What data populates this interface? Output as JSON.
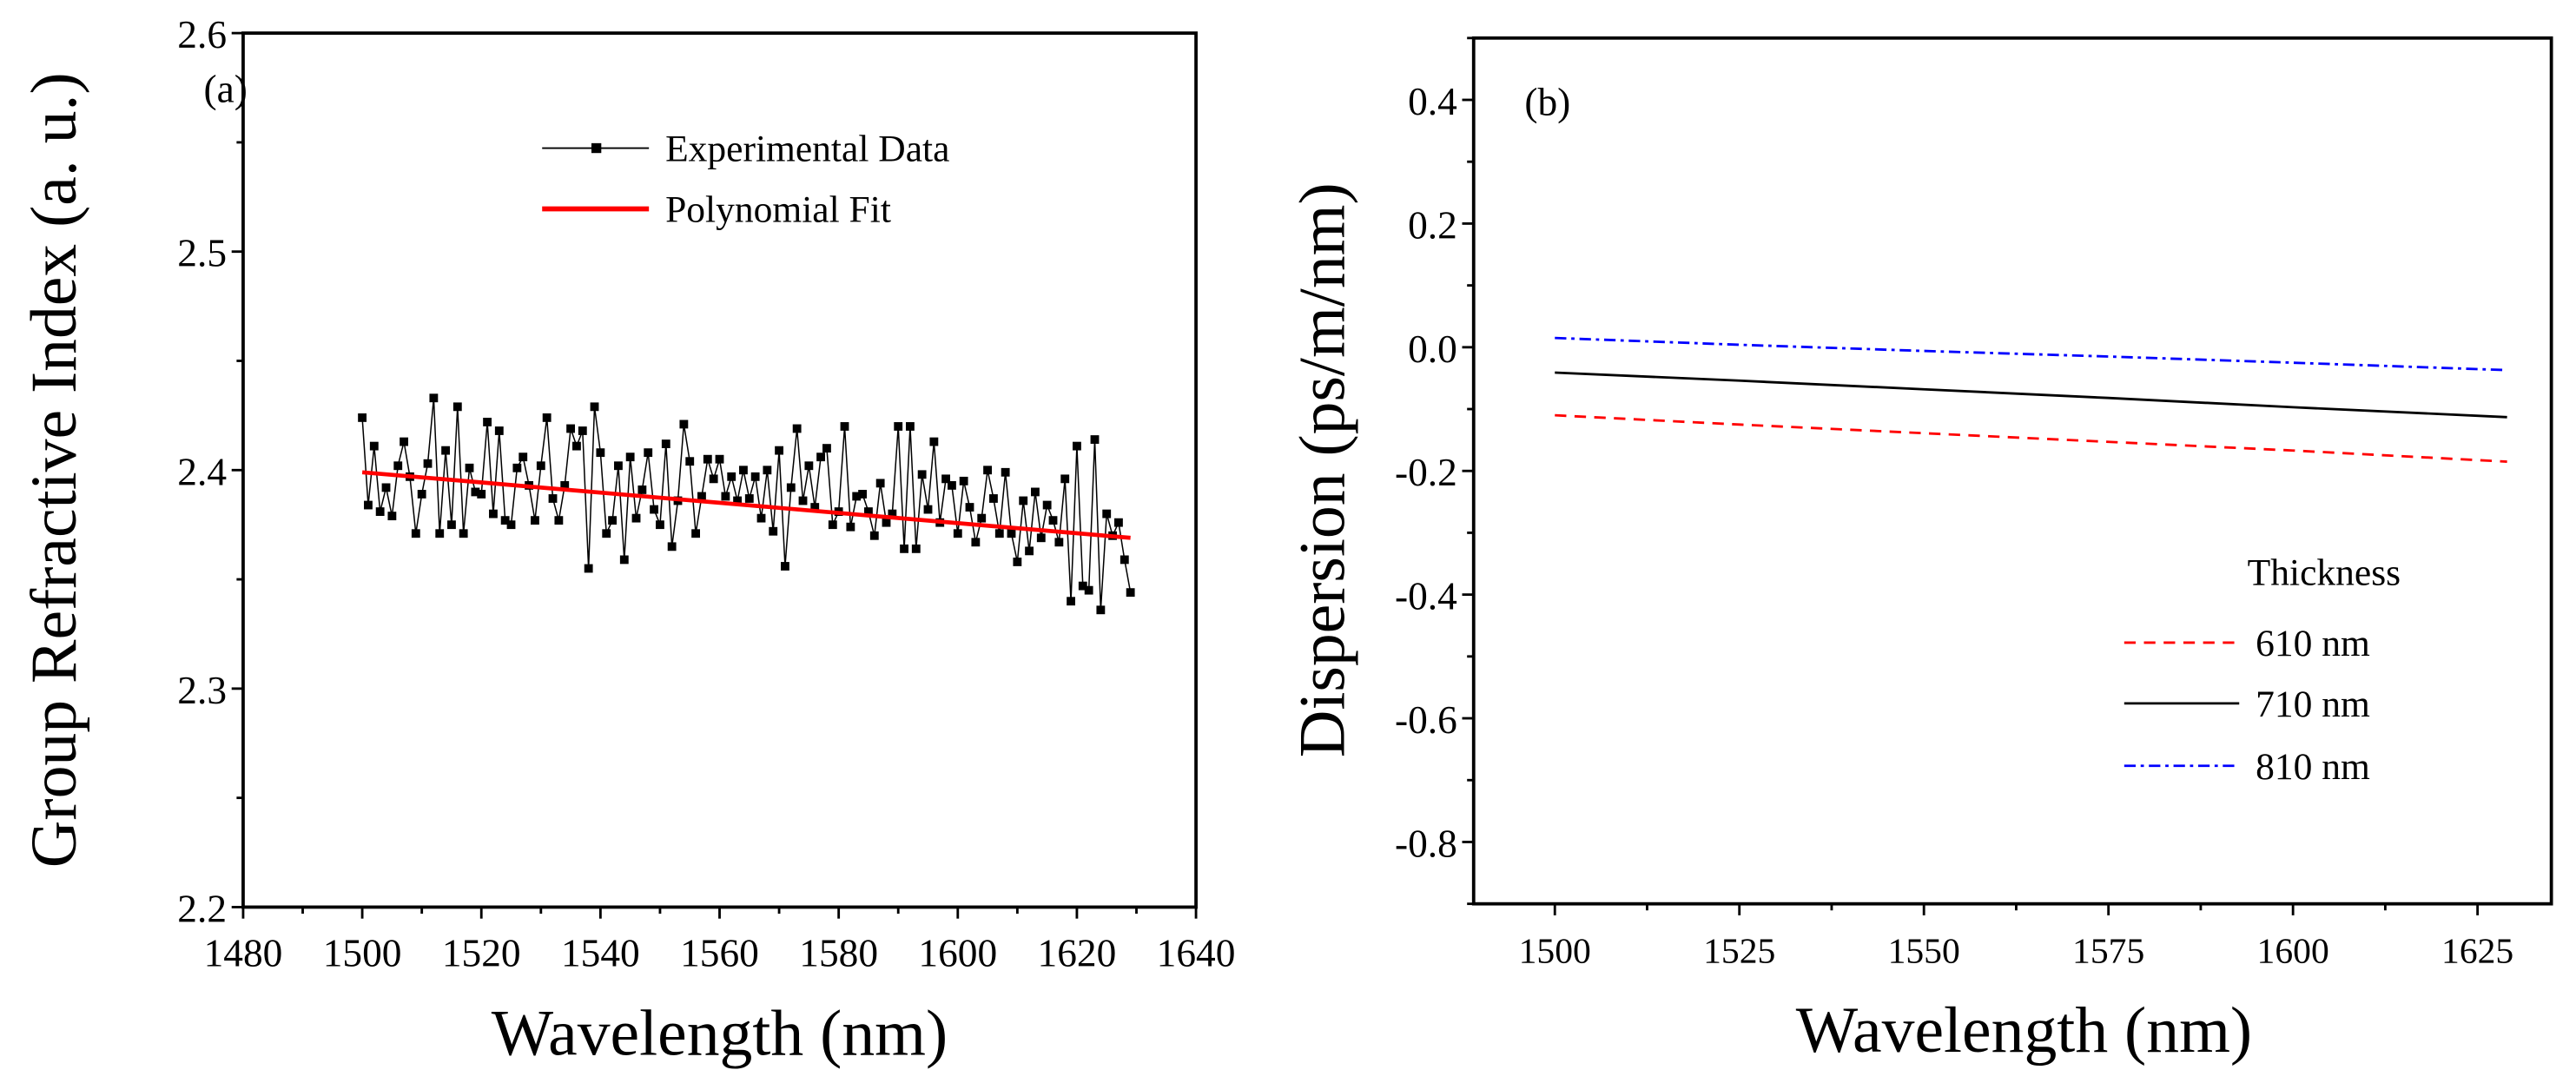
{
  "chart_data": [
    {
      "type": "line",
      "panel_label": "(a)",
      "xlabel": "Wavelength (nm)",
      "ylabel": "Group Refractive Index (a. u.)",
      "xlim": [
        1480,
        1640
      ],
      "ylim": [
        2.2,
        2.6
      ],
      "xticks": [
        "1480",
        "1500",
        "1520",
        "1540",
        "1560",
        "1580",
        "1600",
        "1620",
        "1640"
      ],
      "yticks": [
        "2.2",
        "2.3",
        "2.4",
        "2.5",
        "2.6"
      ],
      "grid": false,
      "legend_position": "top-center",
      "series": [
        {
          "name": "Experimental Data",
          "color": "#000000",
          "marker": "square",
          "x_start": 1500,
          "x_step": 1,
          "values": [
            2.424,
            2.384,
            2.411,
            2.381,
            2.392,
            2.379,
            2.402,
            2.413,
            2.397,
            2.371,
            2.389,
            2.403,
            2.433,
            2.371,
            2.409,
            2.375,
            2.429,
            2.371,
            2.401,
            2.39,
            2.389,
            2.422,
            2.38,
            2.418,
            2.377,
            2.375,
            2.401,
            2.406,
            2.393,
            2.377,
            2.402,
            2.424,
            2.387,
            2.377,
            2.393,
            2.419,
            2.411,
            2.418,
            2.355,
            2.429,
            2.408,
            2.371,
            2.377,
            2.402,
            2.359,
            2.406,
            2.378,
            2.391,
            2.408,
            2.382,
            2.375,
            2.412,
            2.365,
            2.386,
            2.421,
            2.404,
            2.371,
            2.388,
            2.405,
            2.396,
            2.405,
            2.388,
            2.397,
            2.386,
            2.4,
            2.387,
            2.397,
            2.378,
            2.4,
            2.372,
            2.409,
            2.356,
            2.392,
            2.419,
            2.386,
            2.402,
            2.383,
            2.406,
            2.41,
            2.375,
            2.381,
            2.42,
            2.374,
            2.388,
            2.389,
            2.381,
            2.37,
            2.394,
            2.376,
            2.38,
            2.42,
            2.364,
            2.42,
            2.364,
            2.398,
            2.382,
            2.413,
            2.376,
            2.396,
            2.393,
            2.371,
            2.395,
            2.383,
            2.367,
            2.378,
            2.4,
            2.387,
            2.371,
            2.399,
            2.371,
            2.358,
            2.386,
            2.363,
            2.39,
            2.369,
            2.384,
            2.377,
            2.367,
            2.396,
            2.34,
            2.411,
            2.347,
            2.345,
            2.414,
            2.336,
            2.38,
            2.37,
            2.376,
            2.359,
            2.344
          ]
        },
        {
          "name": "Polynomial Fit",
          "color": "#ff0000",
          "x": [
            1500,
            1629
          ],
          "values": [
            2.399,
            2.369
          ]
        }
      ]
    },
    {
      "type": "line",
      "panel_label": "(b)",
      "xlabel": "Wavelength (nm)",
      "ylabel": "Dispersion (ps/m/nm)",
      "xlim": [
        1489,
        1635
      ],
      "ylim": [
        -0.9,
        0.5
      ],
      "xticks": [
        "1500",
        "1525",
        "1550",
        "1575",
        "1600",
        "1625"
      ],
      "yticks": [
        "-0.8",
        "-0.6",
        "-0.4",
        "-0.2",
        "0.0",
        "0.2",
        "0.4"
      ],
      "grid": false,
      "legend_title": "Thickness",
      "legend_position": "bottom-right",
      "series": [
        {
          "name": "610 nm",
          "color": "#ff0000",
          "dash": "dashed",
          "x": [
            1500,
            1525,
            1550,
            1575,
            1600,
            1629
          ],
          "values": [
            -0.11,
            -0.125,
            -0.139,
            -0.153,
            -0.167,
            -0.185
          ]
        },
        {
          "name": "710 nm",
          "color": "#000000",
          "dash": "solid",
          "x": [
            1500,
            1525,
            1550,
            1575,
            1600,
            1629
          ],
          "values": [
            -0.041,
            -0.054,
            -0.068,
            -0.082,
            -0.097,
            -0.113
          ]
        },
        {
          "name": "810 nm",
          "color": "#0000ff",
          "dash": "dash-dot",
          "x": [
            1500,
            1525,
            1550,
            1575,
            1600,
            1629
          ],
          "values": [
            0.015,
            0.004,
            -0.006,
            -0.015,
            -0.025,
            -0.037
          ]
        }
      ]
    }
  ]
}
